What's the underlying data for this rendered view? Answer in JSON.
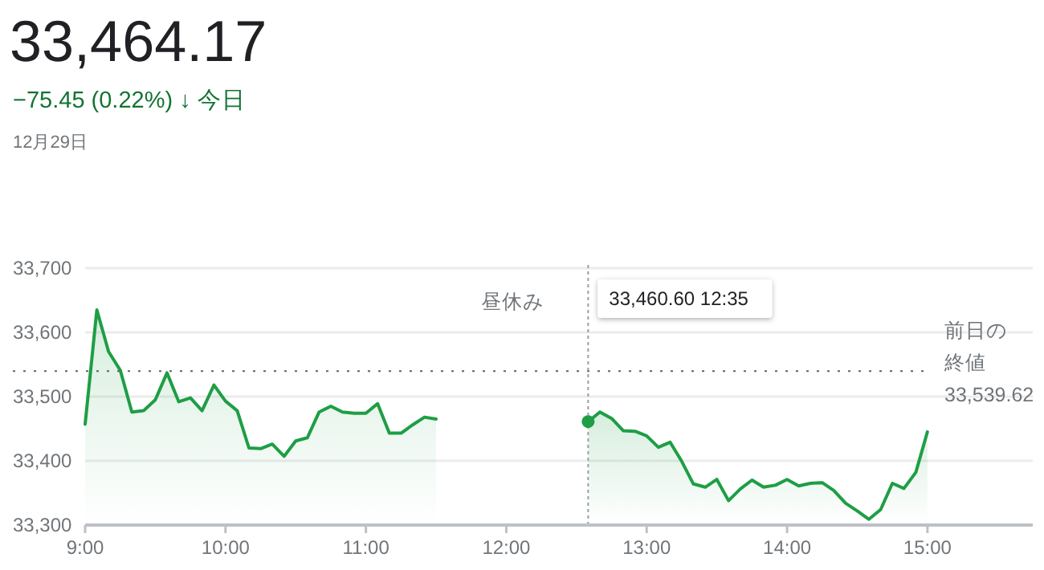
{
  "chart_data": {
    "type": "area",
    "title": "33,464.17",
    "subtitle": "−75.45 (0.22%) ↓ 今日",
    "annotations": [
      "12月29日",
      "33,460.60 12:35",
      "昼休み"
    ],
    "series": [
      {
        "color": "#1e9e45",
        "x": [
          9.0,
          9.083,
          9.167,
          9.25,
          9.333,
          9.417,
          9.5,
          9.583,
          9.667,
          9.75,
          9.833,
          9.917,
          10.0,
          10.083,
          10.167,
          10.25,
          10.333,
          10.417,
          10.5,
          10.583,
          10.667,
          10.75,
          10.833,
          10.917,
          11.0,
          11.083,
          11.167,
          11.25,
          11.333,
          11.417,
          11.5
        ],
        "values": [
          33457,
          33635,
          33570,
          33541,
          33476,
          33478,
          33495,
          33537,
          33492,
          33498,
          33478,
          33518,
          33493,
          33478,
          33420,
          33419,
          33426,
          33407,
          33431,
          33436,
          33476,
          33485,
          33476,
          33474,
          33474,
          33489,
          33443,
          33443,
          33456,
          33468,
          33465
        ]
      },
      {
        "color": "#1e9e45",
        "x": [
          12.583,
          12.667,
          12.75,
          12.833,
          12.917,
          13.0,
          13.083,
          13.167,
          13.25,
          13.333,
          13.417,
          13.5,
          13.583,
          13.667,
          13.75,
          13.833,
          13.917,
          14.0,
          14.083,
          14.167,
          14.25,
          14.333,
          14.417,
          14.5,
          14.583,
          14.667,
          14.75,
          14.833,
          14.917,
          15.0
        ],
        "values": [
          33461,
          33476,
          33466,
          33447,
          33446,
          33439,
          33421,
          33429,
          33399,
          33364,
          33359,
          33371,
          33338,
          33356,
          33370,
          33359,
          33362,
          33371,
          33361,
          33365,
          33366,
          33354,
          33334,
          33322,
          33309,
          33324,
          33365,
          33357,
          33382,
          33445
        ]
      }
    ],
    "ref_lines": [
      {
        "axis": "y",
        "value": 33539.62,
        "label": "前日の終値 33,539.62",
        "line_style": "dotted"
      },
      {
        "axis": "x",
        "value": 12.583,
        "line_style": "dotted"
      }
    ],
    "xlim": [
      9,
      15.75
    ],
    "ylim": [
      33300,
      33700
    ],
    "xticks": [
      {
        "value": 9,
        "label": "9:00"
      },
      {
        "value": 10,
        "label": "10:00"
      },
      {
        "value": 11,
        "label": "11:00"
      },
      {
        "value": 12,
        "label": "12:00"
      },
      {
        "value": 13,
        "label": "13:00"
      },
      {
        "value": 14,
        "label": "14:00"
      },
      {
        "value": 15,
        "label": "15:00"
      }
    ],
    "yticks": [
      {
        "value": 33300,
        "label": "33,300"
      },
      {
        "value": 33400,
        "label": "33,400"
      },
      {
        "value": 33500,
        "label": "33,500"
      },
      {
        "value": 33600,
        "label": "33,600"
      },
      {
        "value": 33700,
        "label": "33,700"
      }
    ],
    "grid": "y",
    "marker": "none",
    "line_style": "solid"
  }
}
